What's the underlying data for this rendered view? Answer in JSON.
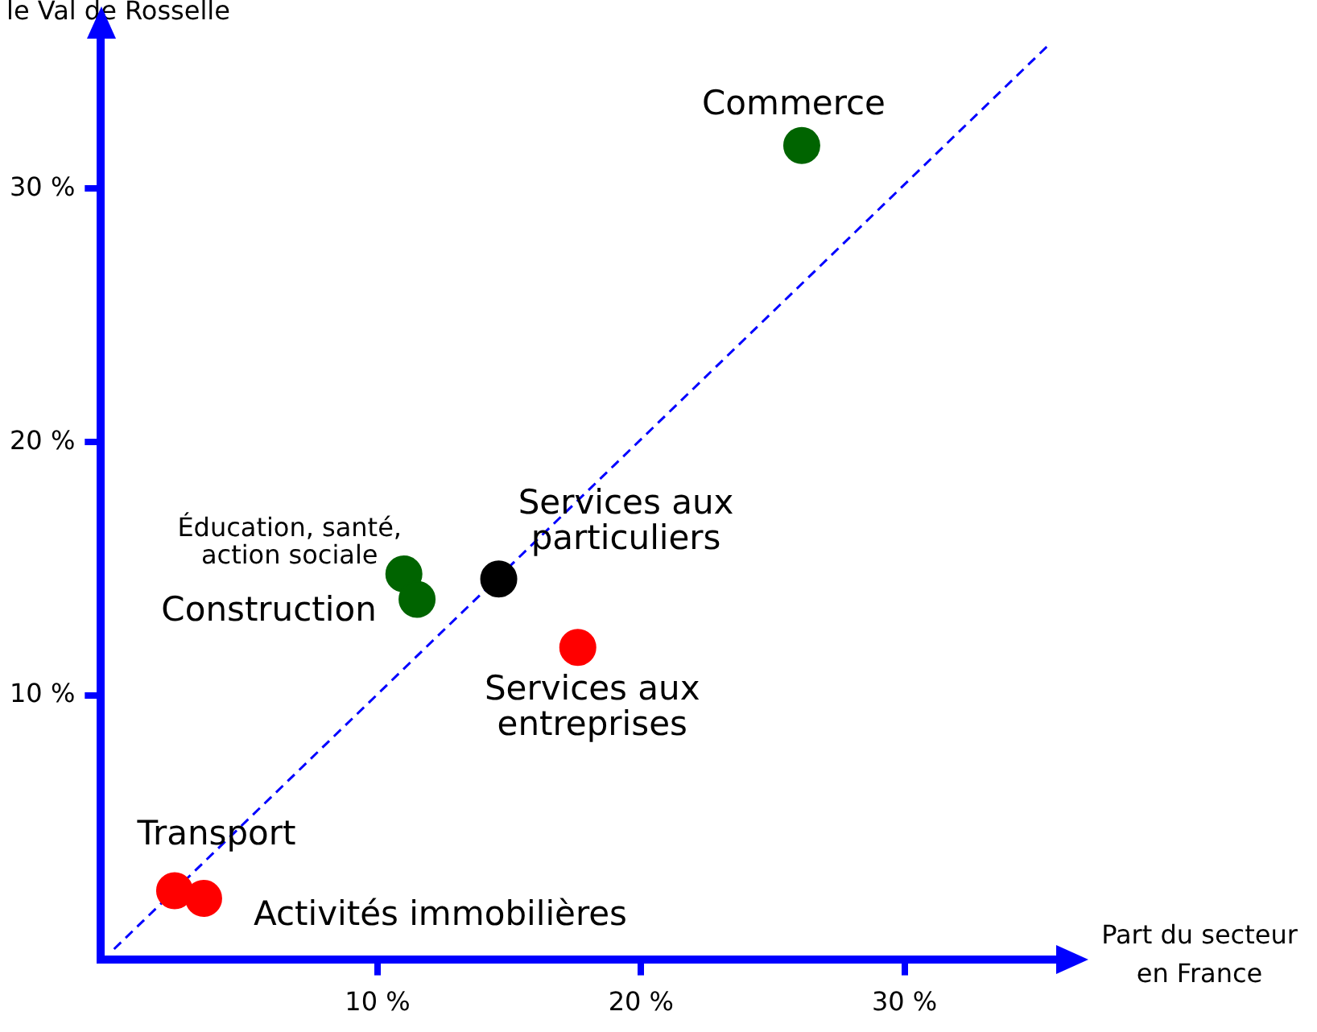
{
  "chart_data": {
    "type": "scatter",
    "xlabel": "Part du secteur\nen France",
    "ylabel": "le Val de Rosselle",
    "xlim": [
      -0.5,
      36
    ],
    "ylim": [
      -0.4,
      36.3
    ],
    "xticks": [
      {
        "value": 10,
        "label": "10 %"
      },
      {
        "value": 20,
        "label": "20 %"
      },
      {
        "value": 30,
        "label": "30 %"
      }
    ],
    "yticks": [
      {
        "value": 10,
        "label": "10 %"
      },
      {
        "value": 20,
        "label": "20 %"
      },
      {
        "value": 30,
        "label": "30 %"
      }
    ],
    "series": [
      {
        "marker": "circle",
        "x": [
          26.1,
          11.0,
          11.5,
          14.6,
          17.6,
          2.3,
          3.4
        ],
        "values": [
          31.7,
          14.8,
          13.8,
          14.6,
          11.9,
          2.3,
          2.0
        ],
        "colors": [
          "#006400",
          "#006400",
          "#006400",
          "#000000",
          "#ff0000",
          "#ff0000",
          "#ff0000"
        ]
      },
      {
        "type": "line",
        "x": [
          0,
          35.5
        ],
        "values": [
          0,
          35.7
        ],
        "color": "#0000ff",
        "line_style": "dashed"
      }
    ],
    "grid": false,
    "legend": false,
    "annotations": [
      "Commerce",
      "Éducation, santé,\naction sociale",
      "Construction",
      "Services aux\nparticuliers",
      "Services aux\nentreprises",
      "Transport",
      "Activités immobilières"
    ]
  }
}
